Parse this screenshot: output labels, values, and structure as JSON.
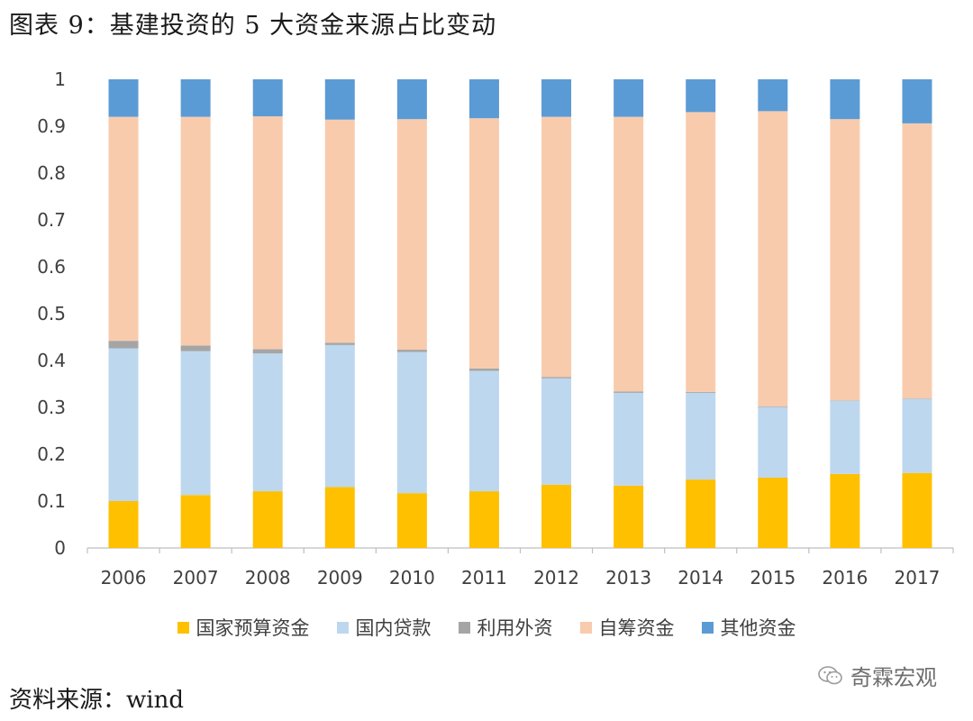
{
  "title": "图表 9：基建投资的 5 大资金来源占比变动",
  "source": "资料来源：wind",
  "watermark": {
    "text": "奇霖宏观",
    "icon": "wechat-icon"
  },
  "chart_data": {
    "type": "bar",
    "stacked": true,
    "categories": [
      "2006",
      "2007",
      "2008",
      "2009",
      "2010",
      "2011",
      "2012",
      "2013",
      "2014",
      "2015",
      "2016",
      "2017"
    ],
    "ylim": [
      0,
      1
    ],
    "yticks": [
      "0",
      "0.1",
      "0.2",
      "0.3",
      "0.4",
      "0.5",
      "0.6",
      "0.7",
      "0.8",
      "0.9",
      "1"
    ],
    "grid": false,
    "legend_position": "bottom",
    "series": [
      {
        "name": "国家预算资金",
        "color": "#FFC000",
        "values": [
          0.1,
          0.113,
          0.121,
          0.13,
          0.117,
          0.121,
          0.135,
          0.133,
          0.146,
          0.15,
          0.158,
          0.16
        ]
      },
      {
        "name": "国内贷款",
        "color": "#BDD7EE",
        "values": [
          0.326,
          0.307,
          0.294,
          0.303,
          0.301,
          0.257,
          0.227,
          0.198,
          0.185,
          0.151,
          0.156,
          0.158
        ]
      },
      {
        "name": "利用外资",
        "color": "#A5A5A5",
        "values": [
          0.016,
          0.012,
          0.009,
          0.005,
          0.005,
          0.005,
          0.003,
          0.003,
          0.002,
          0.001,
          0.001,
          0.001
        ]
      },
      {
        "name": "自筹资金",
        "color": "#F8CBAD",
        "values": [
          0.478,
          0.488,
          0.497,
          0.476,
          0.492,
          0.534,
          0.555,
          0.586,
          0.597,
          0.63,
          0.6,
          0.587
        ]
      },
      {
        "name": "其他资金",
        "color": "#5B9BD5",
        "values": [
          0.08,
          0.08,
          0.079,
          0.086,
          0.085,
          0.083,
          0.08,
          0.08,
          0.07,
          0.068,
          0.085,
          0.094
        ]
      }
    ]
  }
}
